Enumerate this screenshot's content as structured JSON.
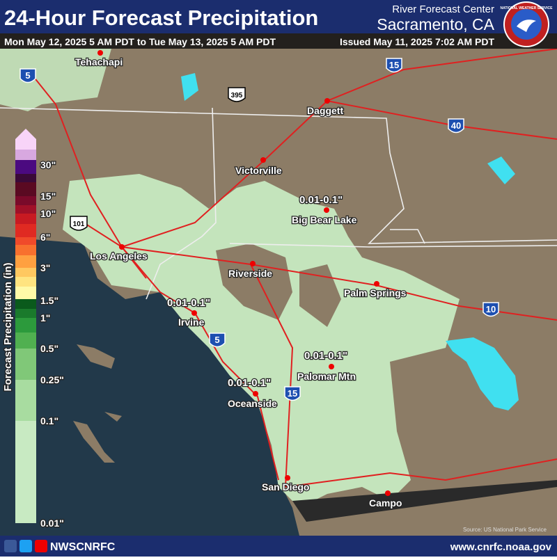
{
  "header": {
    "title": "24-Hour Forecast Precipitation",
    "agency": "River Forecast Center",
    "office": "Sacramento, CA",
    "valid_period": "Mon May 12, 2025 5 AM PDT to Tue May 13, 2025 5 AM PDT",
    "issued": "Issued May 11, 2025 7:02 AM PDT",
    "logo_text": "NATIONAL WEATHER SERVICE"
  },
  "legend": {
    "title": "Forecast Precipitation (in)",
    "labels": [
      "30\"",
      "15\"",
      "10\"",
      "6\"",
      "3\"",
      "1.5\"",
      "1\"",
      "0.5\"",
      "0.25\"",
      "0.1\"",
      "0.01\""
    ]
  },
  "cities": [
    "Tehachapi",
    "Daggett",
    "Victorville",
    "Big Bear Lake",
    "Los Angeles",
    "Riverside",
    "Palm Springs",
    "Irvine",
    "Palomar Mtn",
    "Oceanside",
    "San Diego",
    "Campo"
  ],
  "highways": [
    "5",
    "15",
    "395",
    "40",
    "101",
    "10",
    "5",
    "15"
  ],
  "annotations": [
    "0.01-0.1\"",
    "0.01-0.1\"",
    "0.01-0.1\"",
    "0.01-0.1\""
  ],
  "source": "Source: US National Park Service",
  "footer": {
    "social": "NWSCNRFC",
    "url": "www.cnrfc.noaa.gov"
  }
}
